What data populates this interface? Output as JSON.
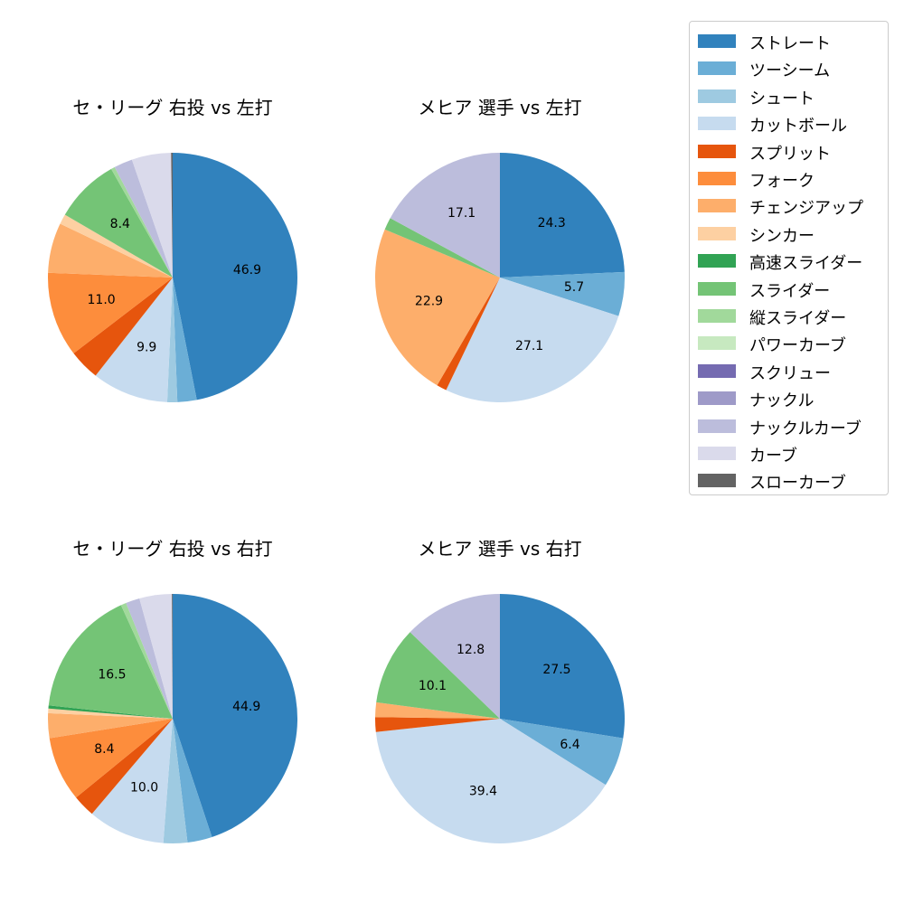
{
  "legend": {
    "items": [
      {
        "label": "ストレート",
        "color": "#3182bd"
      },
      {
        "label": "ツーシーム",
        "color": "#6baed6"
      },
      {
        "label": "シュート",
        "color": "#9ecae1"
      },
      {
        "label": "カットボール",
        "color": "#c6dbef"
      },
      {
        "label": "スプリット",
        "color": "#e6550d"
      },
      {
        "label": "フォーク",
        "color": "#fd8d3c"
      },
      {
        "label": "チェンジアップ",
        "color": "#fdae6b"
      },
      {
        "label": "シンカー",
        "color": "#fdd0a2"
      },
      {
        "label": "高速スライダー",
        "color": "#31a354"
      },
      {
        "label": "スライダー",
        "color": "#74c476"
      },
      {
        "label": "縦スライダー",
        "color": "#a1d99b"
      },
      {
        "label": "パワーカーブ",
        "color": "#c7e9c0"
      },
      {
        "label": "スクリュー",
        "color": "#756bb1"
      },
      {
        "label": "ナックル",
        "color": "#9e9ac8"
      },
      {
        "label": "ナックルカーブ",
        "color": "#bcbddc"
      },
      {
        "label": "カーブ",
        "color": "#dadaeb"
      },
      {
        "label": "スローカーブ",
        "color": "#636363"
      }
    ]
  },
  "chart_data": [
    {
      "type": "pie",
      "title": "セ・リーグ 右投 vs 左打",
      "start_angle_deg": 90,
      "direction": "clockwise",
      "slices": [
        {
          "label": "ストレート",
          "value": 46.9,
          "shown": true
        },
        {
          "label": "ツーシーム",
          "value": 2.5,
          "shown": false
        },
        {
          "label": "シュート",
          "value": 1.3,
          "shown": false
        },
        {
          "label": "カットボール",
          "value": 9.9,
          "shown": true
        },
        {
          "label": "スプリット",
          "value": 4.0,
          "shown": false
        },
        {
          "label": "フォーク",
          "value": 11.0,
          "shown": true
        },
        {
          "label": "チェンジアップ",
          "value": 6.5,
          "shown": false
        },
        {
          "label": "シンカー",
          "value": 1.3,
          "shown": false
        },
        {
          "label": "スライダー",
          "value": 8.4,
          "shown": true
        },
        {
          "label": "縦スライダー",
          "value": 0.5,
          "shown": false
        },
        {
          "label": "ナックルカーブ",
          "value": 2.4,
          "shown": false
        },
        {
          "label": "カーブ",
          "value": 5.1,
          "shown": false
        },
        {
          "label": "スローカーブ",
          "value": 0.2,
          "shown": false
        }
      ]
    },
    {
      "type": "pie",
      "title": "メヒア 選手 vs 左打",
      "start_angle_deg": 90,
      "direction": "clockwise",
      "slices": [
        {
          "label": "ストレート",
          "value": 24.3,
          "shown": true
        },
        {
          "label": "ツーシーム",
          "value": 5.7,
          "shown": true
        },
        {
          "label": "カットボール",
          "value": 27.1,
          "shown": true
        },
        {
          "label": "スプリット",
          "value": 1.3,
          "shown": false
        },
        {
          "label": "チェンジアップ",
          "value": 22.9,
          "shown": true
        },
        {
          "label": "スライダー",
          "value": 1.6,
          "shown": false
        },
        {
          "label": "ナックルカーブ",
          "value": 17.1,
          "shown": true
        }
      ]
    },
    {
      "type": "pie",
      "title": "セ・リーグ 右投 vs 右打",
      "start_angle_deg": 90,
      "direction": "clockwise",
      "slices": [
        {
          "label": "ストレート",
          "value": 44.9,
          "shown": true
        },
        {
          "label": "ツーシーム",
          "value": 3.2,
          "shown": false
        },
        {
          "label": "シュート",
          "value": 3.1,
          "shown": false
        },
        {
          "label": "カットボール",
          "value": 10.0,
          "shown": true
        },
        {
          "label": "スプリット",
          "value": 2.9,
          "shown": false
        },
        {
          "label": "フォーク",
          "value": 8.4,
          "shown": true
        },
        {
          "label": "チェンジアップ",
          "value": 3.2,
          "shown": false
        },
        {
          "label": "シンカー",
          "value": 0.6,
          "shown": false
        },
        {
          "label": "高速スライダー",
          "value": 0.4,
          "shown": false
        },
        {
          "label": "スライダー",
          "value": 16.5,
          "shown": true
        },
        {
          "label": "縦スライダー",
          "value": 0.7,
          "shown": false
        },
        {
          "label": "ナックルカーブ",
          "value": 1.8,
          "shown": false
        },
        {
          "label": "カーブ",
          "value": 4.2,
          "shown": false
        },
        {
          "label": "スローカーブ",
          "value": 0.1,
          "shown": false
        }
      ]
    },
    {
      "type": "pie",
      "title": "メヒア 選手 vs 右打",
      "start_angle_deg": 90,
      "direction": "clockwise",
      "slices": [
        {
          "label": "ストレート",
          "value": 27.5,
          "shown": true
        },
        {
          "label": "ツーシーム",
          "value": 6.4,
          "shown": true
        },
        {
          "label": "カットボール",
          "value": 39.4,
          "shown": true
        },
        {
          "label": "スプリット",
          "value": 1.9,
          "shown": false
        },
        {
          "label": "チェンジアップ",
          "value": 1.9,
          "shown": false
        },
        {
          "label": "スライダー",
          "value": 10.1,
          "shown": true
        },
        {
          "label": "ナックルカーブ",
          "value": 12.8,
          "shown": true
        }
      ]
    }
  ]
}
